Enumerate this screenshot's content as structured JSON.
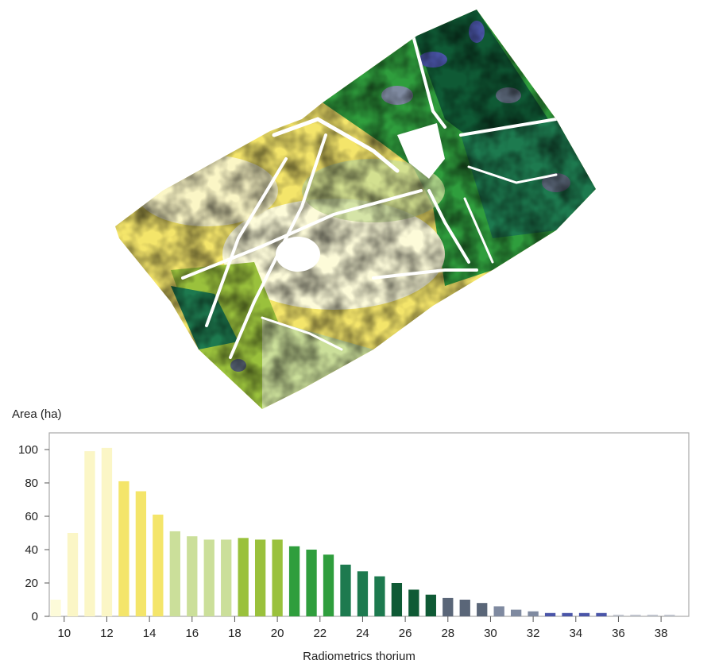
{
  "map": {
    "legend_colors": [
      "#fdfbd9",
      "#f4e56a",
      "#cbdf9a",
      "#9ac13c",
      "#2f9e3d",
      "#1d7a4f",
      "#0f5a35",
      "#5a6678",
      "#7f8aa0",
      "#4a55a8"
    ]
  },
  "chart_data": {
    "type": "bar",
    "title": "",
    "xlabel": "Radiometrics thorium",
    "ylabel": "Area (ha)",
    "ylim": [
      0,
      110
    ],
    "xlim": [
      9.3,
      39.3
    ],
    "yticks": [
      0,
      20,
      40,
      60,
      80,
      100
    ],
    "xticks": [
      10,
      12,
      14,
      16,
      18,
      20,
      22,
      24,
      26,
      28,
      30,
      32,
      34,
      36,
      38
    ],
    "x": [
      9.6,
      10.4,
      11.2,
      12.0,
      12.8,
      13.6,
      14.4,
      15.2,
      16.0,
      16.8,
      17.6,
      18.4,
      19.2,
      20.0,
      20.8,
      21.6,
      22.4,
      23.2,
      24.0,
      24.8,
      25.6,
      26.4,
      27.2,
      28.0,
      28.8,
      29.6,
      30.4,
      31.2,
      32.0,
      32.8,
      33.6,
      34.4,
      35.2,
      36.0,
      36.8,
      37.6,
      38.4
    ],
    "values": [
      10,
      50,
      99,
      101,
      81,
      75,
      61,
      51,
      48,
      46,
      46,
      47,
      46,
      46,
      42,
      40,
      37,
      31,
      27,
      24,
      20,
      16,
      13,
      11,
      10,
      8,
      6,
      4,
      3,
      2,
      2,
      2,
      2,
      1,
      1,
      1,
      1
    ],
    "colors": [
      "#fdfbd9",
      "#fbf6c6",
      "#fbf6c6",
      "#fbf6c6",
      "#f4e56a",
      "#f4e56a",
      "#f4e56a",
      "#cbdf9a",
      "#cbdf9a",
      "#cbdf9a",
      "#cbdf9a",
      "#9ac13c",
      "#9ac13c",
      "#9ac13c",
      "#2f9e3d",
      "#2f9e3d",
      "#2f9e3d",
      "#1d7a4f",
      "#1d7a4f",
      "#1d7a4f",
      "#0f5a35",
      "#0f5a35",
      "#0f5a35",
      "#5a6678",
      "#5a6678",
      "#5a6678",
      "#7f8aa0",
      "#7f8aa0",
      "#7f8aa0",
      "#4a55a8",
      "#4a55a8",
      "#4a55a8",
      "#4a55a8",
      "#bfc3cc",
      "#bfc3cc",
      "#bfc3cc",
      "#bfc3cc"
    ],
    "grid": false,
    "legend": "none"
  }
}
